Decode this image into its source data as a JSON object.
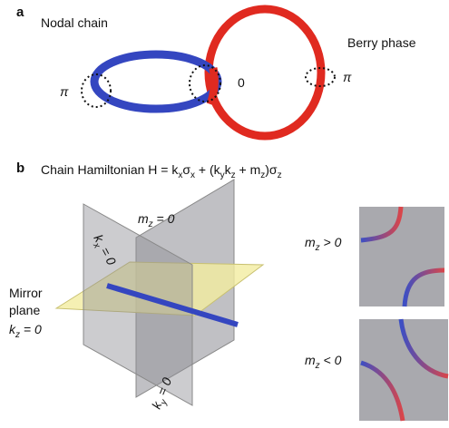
{
  "panel_a": {
    "letter": "a",
    "title": "Nodal chain",
    "berry_label": "Berry phase",
    "phases": [
      "π",
      "0",
      "π"
    ]
  },
  "panel_b": {
    "letter": "b",
    "hamiltonian": [
      "Chain Hamiltonian H = k",
      "x",
      "σ",
      "x",
      " + (k",
      "y",
      "k",
      "z",
      " + m",
      "z",
      ")σ",
      "z"
    ],
    "mz_zero": [
      "m",
      "z",
      " = 0"
    ],
    "kx_zero": [
      "k",
      "x",
      " = 0"
    ],
    "mirror": [
      "Mirror",
      "plane"
    ],
    "kz_zero": [
      "k",
      "z",
      " = 0"
    ],
    "ky_zero": [
      "k",
      "y",
      " = 0"
    ],
    "mz_pos": [
      "m",
      "z",
      " > 0"
    ],
    "mz_neg": [
      "m",
      "z",
      " < 0"
    ]
  }
}
